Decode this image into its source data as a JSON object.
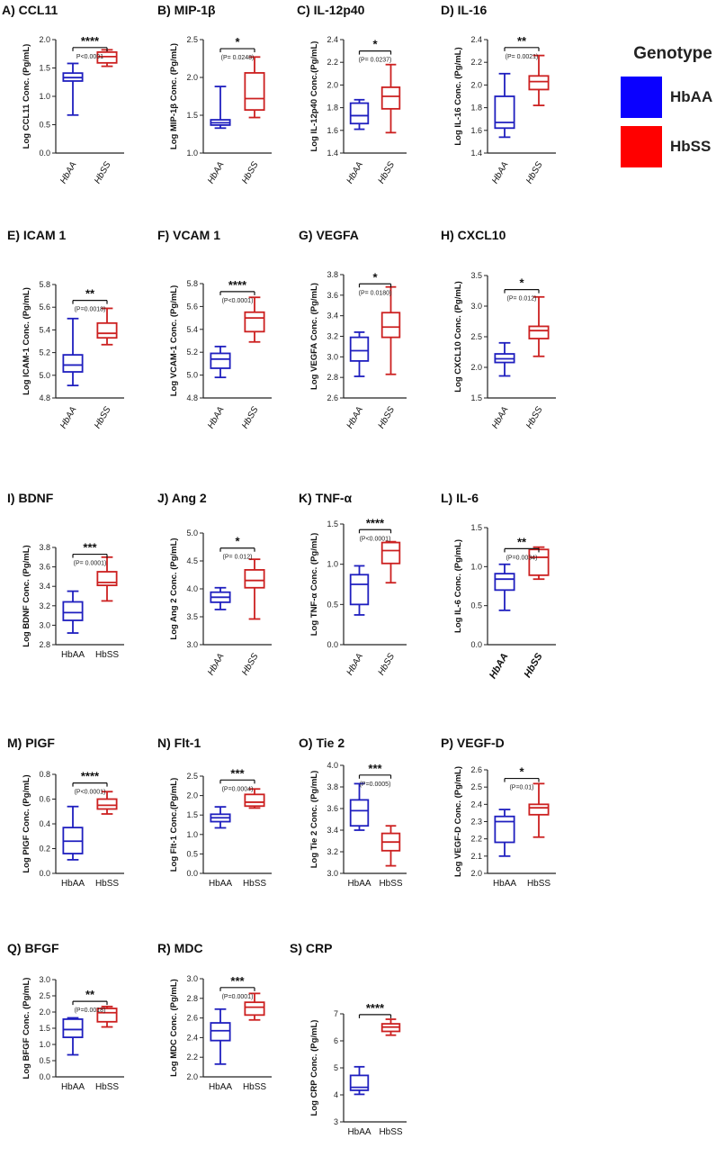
{
  "figure": {
    "colors": {
      "hbaa": "#1f1fbf",
      "hbss": "#cc2020",
      "axis": "#222222"
    },
    "legend": {
      "title": "Genotype",
      "items": [
        {
          "label": "HbAA",
          "color": "#0a00ff"
        },
        {
          "label": "HbSS",
          "color": "#ff0000"
        }
      ]
    }
  },
  "chart_data": [
    {
      "type": "box",
      "panel": "A)",
      "title": "CCL11",
      "ylabel": "Log CCL11 Conc. (Pg/mL)",
      "ylim": [
        0,
        2.0
      ],
      "yticks": [
        0.0,
        0.5,
        1.0,
        1.5,
        2.0
      ],
      "tick_decimals": 1,
      "categories": [
        "HbAA",
        "HbSS"
      ],
      "tick_style": "rot-italic",
      "series": [
        {
          "name": "HbAA",
          "min": 0.67,
          "q1": 1.27,
          "median": 1.33,
          "q3": 1.41,
          "max": 1.58
        },
        {
          "name": "HbSS",
          "min": 1.53,
          "q1": 1.59,
          "median": 1.7,
          "q3": 1.78,
          "max": 1.82
        }
      ],
      "significance": {
        "stars": "****",
        "pvalue": "P<0.0001",
        "y": 1.86
      }
    },
    {
      "type": "box",
      "panel": "B)",
      "title": "MIP-1β",
      "ylabel": "Log MIP-1β Conc. (Pg/mL)",
      "ylim": [
        1.0,
        2.5
      ],
      "yticks": [
        1.0,
        1.5,
        2.0,
        2.5
      ],
      "tick_decimals": 1,
      "categories": [
        "HbAA",
        "HbSS"
      ],
      "tick_style": "rot-italic",
      "series": [
        {
          "name": "HbAA",
          "min": 1.33,
          "q1": 1.37,
          "median": 1.4,
          "q3": 1.44,
          "max": 1.88
        },
        {
          "name": "HbSS",
          "min": 1.47,
          "q1": 1.57,
          "median": 1.72,
          "q3": 2.06,
          "max": 2.27
        }
      ],
      "significance": {
        "stars": "*",
        "pvalue": "(P= 0.0248)",
        "y": 2.38
      }
    },
    {
      "type": "box",
      "panel": "C)",
      "title": "IL-12p40",
      "ylabel": "Log IL-12p40 Conc.(Pg/mL)",
      "ylim": [
        1.4,
        2.4
      ],
      "yticks": [
        1.4,
        1.6,
        1.8,
        2.0,
        2.2,
        2.4
      ],
      "tick_decimals": 1,
      "categories": [
        "HbAA",
        "HbSS"
      ],
      "tick_style": "rot-italic",
      "series": [
        {
          "name": "HbAA",
          "min": 1.61,
          "q1": 1.66,
          "median": 1.73,
          "q3": 1.84,
          "max": 1.87
        },
        {
          "name": "HbSS",
          "min": 1.58,
          "q1": 1.79,
          "median": 1.9,
          "q3": 1.98,
          "max": 2.18
        }
      ],
      "significance": {
        "stars": "*",
        "pvalue": "(P= 0.0237)",
        "y": 2.3
      }
    },
    {
      "type": "box",
      "panel": "D)",
      "title": "IL-16",
      "ylabel": "Log IL-16 Conc. (Pg/mL)",
      "ylim": [
        1.4,
        2.4
      ],
      "yticks": [
        1.4,
        1.6,
        1.8,
        2.0,
        2.2,
        2.4
      ],
      "tick_decimals": 1,
      "categories": [
        "HbAA",
        "HbSS"
      ],
      "tick_style": "rot-italic",
      "series": [
        {
          "name": "HbAA",
          "min": 1.54,
          "q1": 1.62,
          "median": 1.67,
          "q3": 1.9,
          "max": 2.1
        },
        {
          "name": "HbSS",
          "min": 1.82,
          "q1": 1.96,
          "median": 2.03,
          "q3": 2.08,
          "max": 2.26
        }
      ],
      "significance": {
        "stars": "**",
        "pvalue": "(P= 0.0021)",
        "y": 2.33
      }
    },
    {
      "type": "box",
      "panel": "E)",
      "title": "ICAM 1",
      "ylabel": "Log ICAM-1 Conc. (Pg/mL)",
      "ylim": [
        4.8,
        5.8
      ],
      "yticks": [
        4.8,
        5.0,
        5.2,
        5.4,
        5.6,
        5.8
      ],
      "tick_decimals": 1,
      "categories": [
        "HbAA",
        "HbSS"
      ],
      "tick_style": "rot-italic",
      "series": [
        {
          "name": "HbAA",
          "min": 4.91,
          "q1": 5.03,
          "median": 5.09,
          "q3": 5.18,
          "max": 5.5
        },
        {
          "name": "HbSS",
          "min": 5.27,
          "q1": 5.33,
          "median": 5.37,
          "q3": 5.46,
          "max": 5.59
        }
      ],
      "significance": {
        "stars": "**",
        "pvalue": "(P=0.0018)",
        "y": 5.66
      }
    },
    {
      "type": "box",
      "panel": "F)",
      "title": "VCAM 1",
      "ylabel": "Log VCAM-1 Conc. (Pg/mL)",
      "ylim": [
        4.8,
        5.8
      ],
      "yticks": [
        4.8,
        5.0,
        5.2,
        5.4,
        5.6,
        5.8
      ],
      "tick_decimals": 1,
      "categories": [
        "HbAA",
        "HbSS"
      ],
      "tick_style": "rot-italic",
      "series": [
        {
          "name": "HbAA",
          "min": 4.98,
          "q1": 5.06,
          "median": 5.14,
          "q3": 5.19,
          "max": 5.25
        },
        {
          "name": "HbSS",
          "min": 5.29,
          "q1": 5.38,
          "median": 5.5,
          "q3": 5.55,
          "max": 5.68
        }
      ],
      "significance": {
        "stars": "****",
        "pvalue": "(P<0.0001)",
        "y": 5.73
      }
    },
    {
      "type": "box",
      "panel": "G)",
      "title": "VEGFA",
      "ylabel": "Log VEGFA Conc. (Pg/mL)",
      "ylim": [
        2.6,
        3.8
      ],
      "yticks": [
        2.6,
        2.8,
        3.0,
        3.2,
        3.4,
        3.6,
        3.8
      ],
      "tick_decimals": 1,
      "categories": [
        "HbAA",
        "HbSS"
      ],
      "tick_style": "rot-italic",
      "series": [
        {
          "name": "HbAA",
          "min": 2.81,
          "q1": 2.96,
          "median": 3.06,
          "q3": 3.19,
          "max": 3.24
        },
        {
          "name": "HbSS",
          "min": 2.83,
          "q1": 3.19,
          "median": 3.29,
          "q3": 3.43,
          "max": 3.68
        }
      ],
      "significance": {
        "stars": "*",
        "pvalue": "(P= 0.0180)",
        "y": 3.71
      }
    },
    {
      "type": "box",
      "panel": "H)",
      "title": "CXCL10",
      "ylabel": "Log CXCL10 Conc. (Pg/mL)",
      "ylim": [
        1.5,
        3.5
      ],
      "yticks": [
        1.5,
        2.0,
        2.5,
        3.0,
        3.5
      ],
      "tick_decimals": 1,
      "categories": [
        "HbAA",
        "HbSS"
      ],
      "tick_style": "rot-italic",
      "series": [
        {
          "name": "HbAA",
          "min": 1.86,
          "q1": 2.08,
          "median": 2.14,
          "q3": 2.22,
          "max": 2.4
        },
        {
          "name": "HbSS",
          "min": 2.18,
          "q1": 2.47,
          "median": 2.6,
          "q3": 2.67,
          "max": 3.15
        }
      ],
      "significance": {
        "stars": "*",
        "pvalue": "(P= 0.012)",
        "y": 3.27
      }
    },
    {
      "type": "box",
      "panel": "I)",
      "title": "BDNF",
      "ylabel": "Log BDNF Conc. (Pg/mL)",
      "ylim": [
        2.8,
        3.8
      ],
      "yticks": [
        2.8,
        3.0,
        3.2,
        3.4,
        3.6,
        3.8
      ],
      "tick_decimals": 1,
      "categories": [
        "HbAA",
        "HbSS"
      ],
      "tick_style": "plain",
      "series": [
        {
          "name": "HbAA",
          "min": 2.92,
          "q1": 3.05,
          "median": 3.13,
          "q3": 3.24,
          "max": 3.35
        },
        {
          "name": "HbSS",
          "min": 3.25,
          "q1": 3.41,
          "median": 3.44,
          "q3": 3.55,
          "max": 3.7
        }
      ],
      "significance": {
        "stars": "***",
        "pvalue": "(P= 0.0001)",
        "y": 3.73
      }
    },
    {
      "type": "box",
      "panel": "J)",
      "title": "Ang 2",
      "ylabel": "Log Ang 2 Conc. (Pg/mL)",
      "ylim": [
        3.0,
        5.0
      ],
      "yticks": [
        3.0,
        3.5,
        4.0,
        4.5,
        5.0
      ],
      "tick_decimals": 1,
      "categories": [
        "HbAA",
        "HbSS"
      ],
      "tick_style": "rot-italic",
      "series": [
        {
          "name": "HbAA",
          "min": 3.63,
          "q1": 3.76,
          "median": 3.85,
          "q3": 3.94,
          "max": 4.02
        },
        {
          "name": "HbSS",
          "min": 3.46,
          "q1": 4.02,
          "median": 4.15,
          "q3": 4.34,
          "max": 4.53
        }
      ],
      "significance": {
        "stars": "*",
        "pvalue": "(P= 0.012)",
        "y": 4.73
      }
    },
    {
      "type": "box",
      "panel": "K)",
      "title": "TNF-α",
      "ylabel": "Log TNF-α Conc. (Pg/mL)",
      "ylim": [
        0,
        1.5
      ],
      "yticks": [
        0.0,
        0.5,
        1.0,
        1.5
      ],
      "tick_decimals": 1,
      "categories": [
        "HbAA",
        "HbSS"
      ],
      "tick_style": "rot-italic",
      "series": [
        {
          "name": "HbAA",
          "min": 0.37,
          "q1": 0.5,
          "median": 0.75,
          "q3": 0.87,
          "max": 0.98
        },
        {
          "name": "HbSS",
          "min": 0.77,
          "q1": 1.01,
          "median": 1.17,
          "q3": 1.27,
          "max": 1.28
        }
      ],
      "significance": {
        "stars": "****",
        "pvalue": "(P<0.0001)",
        "y": 1.43
      }
    },
    {
      "type": "box",
      "panel": "L)",
      "title": "IL-6",
      "ylabel": "Log IL-6 Conc. (Pg/mL)",
      "ylim": [
        0,
        1.5
      ],
      "yticks": [
        0.0,
        0.5,
        1.0,
        1.5
      ],
      "tick_decimals": 1,
      "categories": [
        "HbAA",
        "HbSS"
      ],
      "tick_style": "rot-bold",
      "series": [
        {
          "name": "HbAA",
          "min": 0.44,
          "q1": 0.7,
          "median": 0.84,
          "q3": 0.91,
          "max": 1.03
        },
        {
          "name": "HbSS",
          "min": 0.84,
          "q1": 0.89,
          "median": 1.12,
          "q3": 1.22,
          "max": 1.25
        }
      ],
      "significance": {
        "stars": "**",
        "pvalue": "(P=0.0034)",
        "y": 1.23
      }
    },
    {
      "type": "box",
      "panel": "M)",
      "title": "PIGF",
      "ylabel": "Log PIGF Conc. (Pg/mL)",
      "ylim": [
        0,
        0.8
      ],
      "yticks": [
        0.0,
        0.2,
        0.4,
        0.6,
        0.8
      ],
      "tick_decimals": 1,
      "categories": [
        "HbAA",
        "HbSS"
      ],
      "tick_style": "plain",
      "series": [
        {
          "name": "HbAA",
          "min": 0.11,
          "q1": 0.16,
          "median": 0.26,
          "q3": 0.37,
          "max": 0.54
        },
        {
          "name": "HbSS",
          "min": 0.48,
          "q1": 0.52,
          "median": 0.55,
          "q3": 0.6,
          "max": 0.66
        }
      ],
      "significance": {
        "stars": "****",
        "pvalue": "(P<0.0001)",
        "y": 0.73
      }
    },
    {
      "type": "box",
      "panel": "N)",
      "title": "Flt-1",
      "ylabel": "Log Flt-1 Conc.(Pg/mL)",
      "ylim": [
        0,
        2.5
      ],
      "yticks": [
        0.0,
        0.5,
        1.0,
        1.5,
        2.0,
        2.5
      ],
      "tick_decimals": 1,
      "categories": [
        "HbAA",
        "HbSS"
      ],
      "tick_style": "plain",
      "series": [
        {
          "name": "HbAA",
          "min": 1.17,
          "q1": 1.33,
          "median": 1.43,
          "q3": 1.52,
          "max": 1.71
        },
        {
          "name": "HbSS",
          "min": 1.68,
          "q1": 1.73,
          "median": 1.83,
          "q3": 2.03,
          "max": 2.17
        }
      ],
      "significance": {
        "stars": "***",
        "pvalue": "(P=0.0004)",
        "y": 2.4
      }
    },
    {
      "type": "box",
      "panel": "O)",
      "title": "Tie 2",
      "ylabel": "Log Tie 2 Conc. (Pg/mL)",
      "ylim": [
        3.0,
        4.0
      ],
      "yticks": [
        3.0,
        3.2,
        3.4,
        3.6,
        3.8,
        4.0
      ],
      "tick_decimals": 1,
      "categories": [
        "HbAA",
        "HbSS"
      ],
      "tick_style": "plain",
      "series": [
        {
          "name": "HbAA",
          "min": 3.4,
          "q1": 3.44,
          "median": 3.58,
          "q3": 3.68,
          "max": 3.83
        },
        {
          "name": "HbSS",
          "min": 3.07,
          "q1": 3.21,
          "median": 3.29,
          "q3": 3.37,
          "max": 3.44
        }
      ],
      "significance": {
        "stars": "***",
        "pvalue": "(P=0.0005)",
        "y": 3.91
      }
    },
    {
      "type": "box",
      "panel": "P)",
      "title": "VEGF-D",
      "ylabel": "Log VEGF-D Conc. (Pg/mL)",
      "ylim": [
        2.0,
        2.6
      ],
      "yticks": [
        2.0,
        2.1,
        2.2,
        2.3,
        2.4,
        2.5,
        2.6
      ],
      "tick_decimals": 1,
      "categories": [
        "HbAA",
        "HbSS"
      ],
      "tick_style": "plain",
      "series": [
        {
          "name": "HbAA",
          "min": 2.1,
          "q1": 2.18,
          "median": 2.3,
          "q3": 2.33,
          "max": 2.37
        },
        {
          "name": "HbSS",
          "min": 2.21,
          "q1": 2.34,
          "median": 2.38,
          "q3": 2.4,
          "max": 2.52
        }
      ],
      "significance": {
        "stars": "*",
        "pvalue": "(P=0.01)",
        "y": 2.55
      }
    },
    {
      "type": "box",
      "panel": "Q)",
      "title": "BFGF",
      "ylabel": "Log BFGF Conc. (Pg/mL)",
      "ylim": [
        0,
        3.0
      ],
      "yticks": [
        0.0,
        0.5,
        1.0,
        1.5,
        2.0,
        2.5,
        3.0
      ],
      "tick_decimals": 1,
      "categories": [
        "HbAA",
        "HbSS"
      ],
      "tick_style": "plain",
      "series": [
        {
          "name": "HbAA",
          "min": 0.68,
          "q1": 1.22,
          "median": 1.46,
          "q3": 1.78,
          "max": 1.82
        },
        {
          "name": "HbSS",
          "min": 1.54,
          "q1": 1.7,
          "median": 1.98,
          "q3": 2.11,
          "max": 2.17
        }
      ],
      "significance": {
        "stars": "**",
        "pvalue": "(P=0.0018)",
        "y": 2.33
      }
    },
    {
      "type": "box",
      "panel": "R)",
      "title": "MDC",
      "ylabel": "Log MDC Conc. (Pg/mL)",
      "ylim": [
        2.0,
        3.0
      ],
      "yticks": [
        2.0,
        2.2,
        2.4,
        2.6,
        2.8,
        3.0
      ],
      "tick_decimals": 1,
      "categories": [
        "HbAA",
        "HbSS"
      ],
      "tick_style": "plain",
      "series": [
        {
          "name": "HbAA",
          "min": 2.13,
          "q1": 2.37,
          "median": 2.47,
          "q3": 2.55,
          "max": 2.69
        },
        {
          "name": "HbSS",
          "min": 2.58,
          "q1": 2.63,
          "median": 2.71,
          "q3": 2.76,
          "max": 2.85
        }
      ],
      "significance": {
        "stars": "***",
        "pvalue": "(P=0.0001)",
        "y": 2.91
      }
    },
    {
      "type": "box",
      "panel": "S)",
      "title": "CRP",
      "ylabel": "Log CRP Conc. (Pg/mL)",
      "ylim": [
        3,
        7
      ],
      "yticks": [
        3,
        4,
        5,
        6,
        7
      ],
      "tick_decimals": 0,
      "categories": [
        "HbAA",
        "HbSS"
      ],
      "tick_style": "plain",
      "series": [
        {
          "name": "HbAA",
          "min": 4.02,
          "q1": 4.17,
          "median": 4.28,
          "q3": 4.72,
          "max": 5.04
        },
        {
          "name": "HbSS",
          "min": 6.21,
          "q1": 6.35,
          "median": 6.51,
          "q3": 6.63,
          "max": 6.8
        }
      ],
      "significance": {
        "stars": "****",
        "pvalue": "",
        "y": 6.97
      }
    }
  ]
}
